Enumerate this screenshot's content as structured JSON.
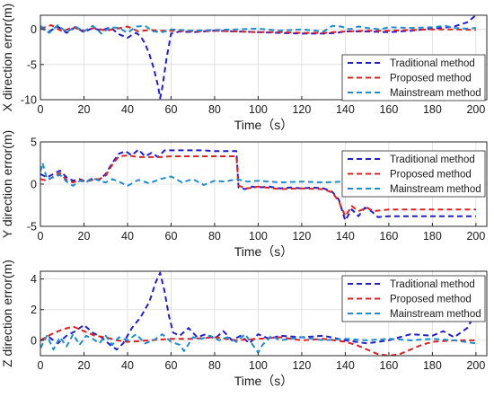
{
  "chart_data": [
    {
      "type": "line",
      "xlabel": "Time（s）",
      "ylabel": "X direction error(m)",
      "xlim": [
        0,
        205
      ],
      "ylim": [
        -10,
        2
      ],
      "xticks": [
        "0",
        "20",
        "40",
        "60",
        "80",
        "100",
        "120",
        "140",
        "160",
        "180",
        "200"
      ],
      "yticks": [
        "0",
        "-5",
        "-10"
      ],
      "legend_position": "bottom-right",
      "series": [
        {
          "name": "Traditional method",
          "color": "#1f1fcf",
          "x": [
            0,
            4,
            8,
            12,
            16,
            20,
            24,
            28,
            32,
            36,
            40,
            42,
            44,
            46,
            48,
            50,
            52,
            54,
            55,
            56,
            58,
            60,
            64,
            70,
            80,
            90,
            100,
            110,
            120,
            130,
            136,
            140,
            150,
            160,
            170,
            180,
            190,
            196,
            200
          ],
          "y": [
            0.2,
            -0.3,
            0.4,
            -0.5,
            0.3,
            -0.4,
            0.2,
            -0.2,
            0.3,
            -0.7,
            -1.2,
            -0.8,
            -0.5,
            -1.0,
            -2.0,
            -3.5,
            -5.5,
            -8.0,
            -9.8,
            -8.2,
            -4.0,
            -0.6,
            -0.3,
            -0.4,
            -0.2,
            -0.3,
            -0.4,
            -0.5,
            -0.6,
            -0.6,
            -0.5,
            -0.3,
            -0.3,
            -0.4,
            -0.2,
            0.1,
            0.4,
            1.0,
            2.0
          ]
        },
        {
          "name": "Proposed method",
          "color": "#e02020",
          "x": [
            0,
            5,
            10,
            15,
            20,
            25,
            30,
            35,
            40,
            45,
            50,
            55,
            60,
            70,
            80,
            90,
            100,
            110,
            120,
            130,
            140,
            150,
            160,
            170,
            180,
            190,
            200
          ],
          "y": [
            0.1,
            0.6,
            -0.3,
            0.3,
            -0.2,
            0.2,
            -0.2,
            0.1,
            0.4,
            -0.3,
            -0.1,
            -0.2,
            -0.2,
            -0.3,
            -0.2,
            -0.3,
            -0.4,
            -0.4,
            -0.5,
            -0.5,
            -0.3,
            -0.2,
            -0.2,
            -0.1,
            0.0,
            0.0,
            -0.1
          ]
        },
        {
          "name": "Mainstream method",
          "color": "#1e8cd0",
          "x": [
            0,
            4,
            8,
            12,
            16,
            20,
            24,
            28,
            32,
            36,
            40,
            44,
            48,
            52,
            56,
            60,
            70,
            80,
            90,
            100,
            110,
            120,
            130,
            134,
            138,
            142,
            146,
            150,
            156,
            160,
            170,
            180,
            186,
            190,
            196,
            200
          ],
          "y": [
            0.5,
            -0.5,
            0.6,
            -0.4,
            0.4,
            -0.3,
            0.5,
            -0.6,
            0.3,
            0.2,
            -0.5,
            0.4,
            0.5,
            -0.3,
            -0.4,
            0.0,
            -0.2,
            -0.1,
            0.0,
            0.1,
            -0.2,
            0.0,
            -0.3,
            0.5,
            0.4,
            0.0,
            0.4,
            0.2,
            0.0,
            0.3,
            0.2,
            0.3,
            0.5,
            0.2,
            0.1,
            0.2
          ]
        }
      ]
    },
    {
      "type": "line",
      "xlabel": "Time（s）",
      "ylabel": "Y direction error(m)",
      "xlim": [
        0,
        205
      ],
      "ylim": [
        -5,
        5
      ],
      "xticks": [
        "0",
        "20",
        "40",
        "60",
        "80",
        "100",
        "120",
        "140",
        "160",
        "180",
        "200"
      ],
      "yticks": [
        "5",
        "0",
        "-5"
      ],
      "legend_position": "top-right",
      "series": [
        {
          "name": "Traditional method",
          "color": "#1f1fcf",
          "x": [
            0,
            3,
            6,
            9,
            12,
            15,
            18,
            21,
            24,
            27,
            30,
            33,
            36,
            39,
            42,
            45,
            48,
            51,
            54,
            57,
            60,
            65,
            70,
            75,
            80,
            85,
            90,
            91,
            94,
            97,
            100,
            105,
            110,
            115,
            120,
            125,
            130,
            134,
            137,
            139,
            140,
            143,
            146,
            149,
            152,
            155,
            160,
            170,
            180,
            190,
            200
          ],
          "y": [
            1.2,
            0.8,
            1.2,
            1.6,
            0.8,
            0.4,
            0.6,
            0.3,
            0.7,
            0.5,
            1.2,
            2.5,
            3.6,
            3.9,
            3.4,
            4.1,
            3.3,
            3.7,
            3.2,
            4.0,
            4.0,
            4.0,
            4.0,
            4.0,
            3.9,
            3.9,
            3.9,
            -0.4,
            -0.6,
            -0.3,
            -0.4,
            -0.3,
            -0.5,
            -0.4,
            -0.5,
            -0.4,
            -0.5,
            -0.9,
            -1.8,
            -3.5,
            -4.3,
            -3.0,
            -3.8,
            -2.8,
            -3.2,
            -3.9,
            -3.8,
            -3.8,
            -3.8,
            -3.8,
            -3.8
          ]
        },
        {
          "name": "Proposed method",
          "color": "#e02020",
          "x": [
            0,
            3,
            6,
            9,
            12,
            15,
            18,
            21,
            24,
            27,
            30,
            33,
            36,
            40,
            45,
            50,
            55,
            60,
            70,
            80,
            90,
            91,
            95,
            100,
            110,
            120,
            130,
            134,
            137,
            140,
            143,
            146,
            150,
            153,
            160,
            170,
            180,
            190,
            200
          ],
          "y": [
            0.6,
            0.4,
            0.9,
            1.3,
            0.5,
            0.2,
            0.5,
            0.3,
            0.5,
            0.6,
            1.0,
            2.3,
            3.3,
            3.4,
            3.2,
            3.2,
            3.2,
            3.3,
            3.3,
            3.3,
            3.3,
            -0.2,
            -0.5,
            -0.3,
            -0.6,
            -0.5,
            -0.6,
            -1.0,
            -2.0,
            -3.8,
            -2.6,
            -3.2,
            -2.8,
            -3.2,
            -3.0,
            -3.0,
            -3.0,
            -3.0,
            -3.0
          ]
        },
        {
          "name": "Mainstream method",
          "color": "#1e8cd0",
          "x": [
            0,
            1,
            3,
            6,
            9,
            12,
            15,
            18,
            21,
            24,
            27,
            30,
            33,
            36,
            40,
            45,
            50,
            55,
            60,
            65,
            70,
            75,
            80,
            85,
            90,
            95,
            100,
            110,
            120,
            130,
            140,
            150,
            160,
            170,
            180,
            190,
            200
          ],
          "y": [
            1.5,
            2.5,
            0.6,
            0.8,
            1.1,
            0.3,
            -0.2,
            0.4,
            0.2,
            0.7,
            0.4,
            0.2,
            0.6,
            0.3,
            -0.2,
            0.5,
            0.1,
            0.6,
            0.9,
            0.2,
            0.6,
            -0.1,
            0.4,
            0.3,
            0.6,
            0.3,
            0.4,
            0.2,
            0.3,
            0.2,
            0.3,
            0.3,
            0.4,
            0.3,
            0.2,
            0.3,
            0.3
          ]
        }
      ]
    },
    {
      "type": "line",
      "xlabel": "Time（s）",
      "ylabel": "Z direction error(m)",
      "xlim": [
        0,
        205
      ],
      "ylim": [
        -1,
        4.5
      ],
      "xticks": [
        "0",
        "20",
        "40",
        "60",
        "80",
        "100",
        "120",
        "140",
        "160",
        "180",
        "200"
      ],
      "yticks": [
        "4",
        "2",
        "0"
      ],
      "legend_position": "top-right",
      "series": [
        {
          "name": "Traditional method",
          "color": "#1f1fcf",
          "x": [
            0,
            4,
            8,
            12,
            16,
            20,
            24,
            28,
            32,
            35,
            38,
            42,
            46,
            50,
            53,
            55,
            57,
            59,
            61,
            64,
            68,
            72,
            76,
            80,
            84,
            88,
            92,
            96,
            100,
            105,
            110,
            120,
            130,
            140,
            150,
            160,
            170,
            180,
            185,
            190,
            196,
            200
          ],
          "y": [
            0.0,
            0.2,
            -0.2,
            0.3,
            0.6,
            1.0,
            0.5,
            0.2,
            -0.3,
            -0.6,
            -0.2,
            0.8,
            1.5,
            2.5,
            3.8,
            4.4,
            3.2,
            1.6,
            0.5,
            0.3,
            0.8,
            0.2,
            0.4,
            0.1,
            0.6,
            0.0,
            0.3,
            -0.2,
            0.4,
            0.1,
            0.3,
            0.2,
            0.3,
            0.0,
            -0.2,
            0.0,
            0.4,
            0.3,
            0.6,
            0.2,
            0.8,
            1.8
          ]
        },
        {
          "name": "Proposed method",
          "color": "#e02020",
          "x": [
            0,
            5,
            10,
            15,
            20,
            25,
            30,
            35,
            40,
            50,
            60,
            70,
            80,
            90,
            100,
            110,
            120,
            130,
            140,
            145,
            150,
            155,
            160,
            165,
            170,
            175,
            180,
            190,
            200
          ],
          "y": [
            0.0,
            0.4,
            0.7,
            0.9,
            0.6,
            0.3,
            0.2,
            0.0,
            -0.1,
            0.0,
            0.1,
            0.1,
            0.2,
            0.0,
            0.1,
            0.2,
            0.0,
            0.1,
            -0.1,
            -0.3,
            -0.6,
            -0.9,
            -1.0,
            -0.9,
            -0.6,
            -0.3,
            -0.1,
            0.0,
            0.0
          ]
        },
        {
          "name": "Mainstream method",
          "color": "#1e8cd0",
          "x": [
            0,
            3,
            6,
            9,
            12,
            15,
            18,
            21,
            24,
            27,
            30,
            33,
            36,
            40,
            44,
            48,
            52,
            56,
            60,
            64,
            66,
            70,
            74,
            78,
            82,
            86,
            90,
            94,
            98,
            100,
            102,
            106,
            110,
            120,
            130,
            140,
            150,
            160,
            170,
            180,
            190,
            200
          ],
          "y": [
            -0.5,
            0.3,
            -0.6,
            0.2,
            -0.4,
            0.4,
            -0.3,
            0.3,
            0.1,
            -0.2,
            0.3,
            -0.3,
            0.2,
            0.0,
            0.4,
            -0.2,
            0.0,
            0.4,
            -0.1,
            -0.3,
            -0.7,
            0.2,
            0.1,
            0.3,
            0.0,
            0.2,
            -0.1,
            0.4,
            -0.4,
            -0.8,
            -0.3,
            0.3,
            0.0,
            0.2,
            0.0,
            0.1,
            0.0,
            0.1,
            0.0,
            0.1,
            0.0,
            -0.2
          ]
        }
      ]
    }
  ]
}
